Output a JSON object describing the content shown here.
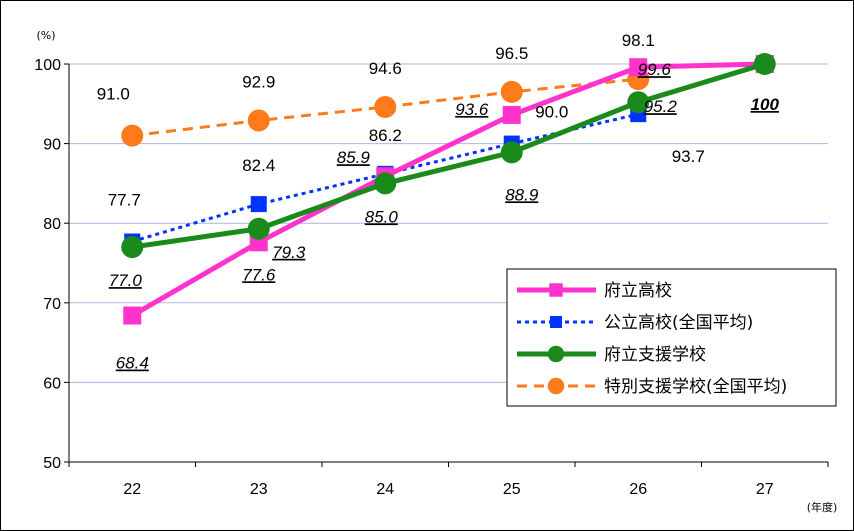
{
  "chart_data": {
    "type": "line",
    "y_unit": "(%)",
    "x_unit": "(年度)",
    "ylim": [
      50,
      100
    ],
    "yticks": [
      "50",
      "60",
      "70",
      "80",
      "90",
      "100"
    ],
    "categories": [
      "22",
      "23",
      "24",
      "25",
      "26",
      "27"
    ],
    "grid": true,
    "legend_position": "bottom-right",
    "series": [
      {
        "name": "府立高校",
        "color": "#ff33cc",
        "line_style": "solid",
        "marker": "square",
        "values": [
          68.4,
          77.6,
          85.9,
          93.6,
          99.6,
          100
        ],
        "labels": [
          "68.4",
          "77.6",
          "85.9",
          "93.6",
          "99.6",
          "100"
        ],
        "label_style": "italic-underline"
      },
      {
        "name": "公立高校(全国平均)",
        "color": "#0033ff",
        "line_style": "dotted",
        "marker": "square",
        "values": [
          77.7,
          82.4,
          86.2,
          90.0,
          93.7,
          null
        ],
        "labels": [
          "77.7",
          "82.4",
          "86.2",
          "90.0",
          "93.7",
          ""
        ],
        "label_style": "plain"
      },
      {
        "name": "府立支援学校",
        "color": "#1a8a1a",
        "line_style": "solid",
        "marker": "circle",
        "values": [
          77.0,
          79.3,
          85.0,
          88.9,
          95.2,
          100
        ],
        "labels": [
          "77.0",
          "79.3",
          "85.0",
          "88.9",
          "95.2",
          "100"
        ],
        "label_style": "italic-underline"
      },
      {
        "name": "特別支援学校(全国平均)",
        "color": "#ff7a1a",
        "line_style": "dashed",
        "marker": "circle",
        "values": [
          91.0,
          92.9,
          94.6,
          96.5,
          98.1,
          null
        ],
        "labels": [
          "91.0",
          "92.9",
          "94.6",
          "96.5",
          "98.1",
          ""
        ],
        "label_style": "plain"
      }
    ]
  }
}
